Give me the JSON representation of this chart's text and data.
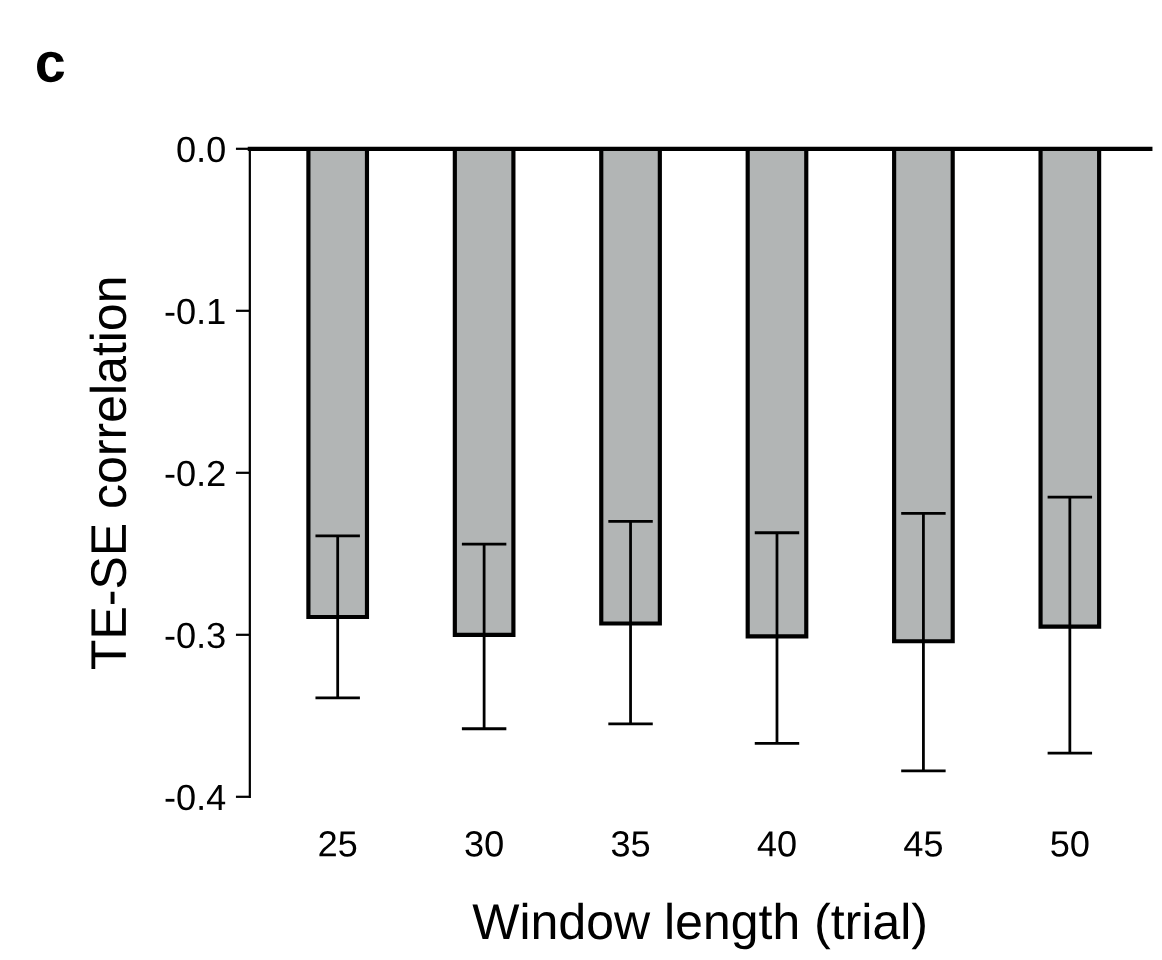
{
  "chart_data": {
    "type": "bar",
    "xlabel": "Window length (trial)",
    "ylabel": "TE-SE correlation",
    "annotations": [
      "c"
    ],
    "categories": [
      "25",
      "30",
      "35",
      "40",
      "45",
      "50"
    ],
    "values": [
      -0.289,
      -0.3,
      -0.293,
      -0.301,
      -0.304,
      -0.295
    ],
    "errors": [
      [
        -0.339,
        -0.239
      ],
      [
        -0.358,
        -0.244
      ],
      [
        -0.355,
        -0.23
      ],
      [
        -0.367,
        -0.237
      ],
      [
        -0.384,
        -0.225
      ],
      [
        -0.373,
        -0.215
      ]
    ],
    "color": "#b2b5b5",
    "ylim": [
      -0.4,
      0.0
    ],
    "yticks": [
      {
        "value": -0.4,
        "label": "-0.4"
      },
      {
        "value": -0.3,
        "label": "-0.3"
      },
      {
        "value": -0.2,
        "label": "-0.2"
      },
      {
        "value": -0.1,
        "label": "-0.1"
      },
      {
        "value": 0.0,
        "label": "0.0"
      }
    ],
    "grid": false
  }
}
